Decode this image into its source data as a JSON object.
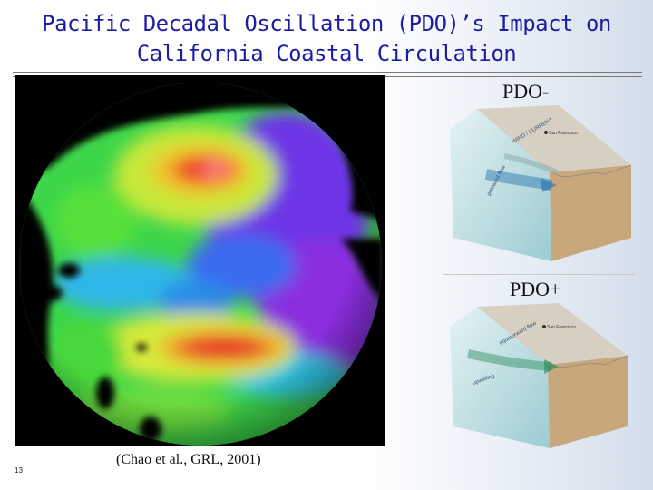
{
  "slide": {
    "title_line1": "Pacific Decadal Oscillation (PDO)’s Impact on",
    "title_line2": "California Coastal Circulation",
    "label_minus": "PDO-",
    "label_plus": "PDO+",
    "citation": "(Chao et al., GRL, 2001)",
    "page_number": "13"
  },
  "figure": {
    "globe_image": "pacific-globe-sea-surface-map",
    "diagram_top": "coastal-circulation-block-diagram-pdo-minus",
    "diagram_bottom": "coastal-circulation-block-diagram-pdo-plus",
    "colors": {
      "land": "#000000",
      "high": "#e8282a",
      "mid": "#3fdc3a",
      "low": "#7a2fe6",
      "water_block": "#bfe0e2",
      "earth_block": "#c9a77c"
    }
  }
}
